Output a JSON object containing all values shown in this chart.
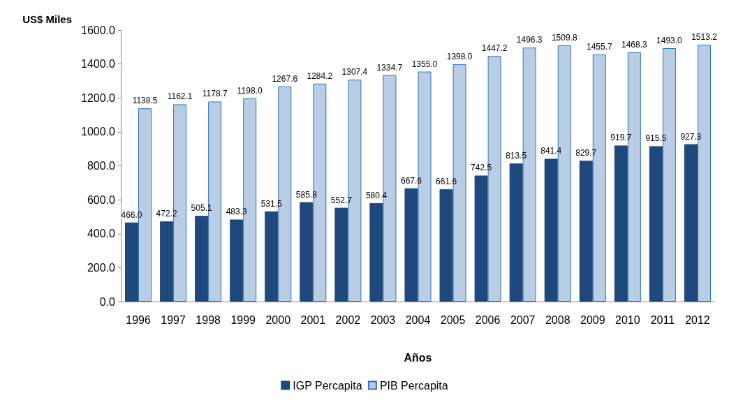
{
  "chart_data": {
    "type": "bar",
    "xlabel": "Años",
    "ylabel": "US$ Miles",
    "categories": [
      "1996",
      "1997",
      "1998",
      "1999",
      "2000",
      "2001",
      "2002",
      "2003",
      "2004",
      "2005",
      "2006",
      "2007",
      "2008",
      "2009",
      "2010",
      "2011",
      "2012"
    ],
    "series": [
      {
        "name": "IGP Percapita",
        "color": "#1f497d",
        "values": [
          466.0,
          472.2,
          505.1,
          483.3,
          531.5,
          585.8,
          552.7,
          580.4,
          667.6,
          661.6,
          742.5,
          813.5,
          841.4,
          829.7,
          919.7,
          915.5,
          927.3
        ],
        "value_labels": [
          "466.0",
          "472.2",
          "505.1",
          "483.3",
          "531.5",
          "585.8",
          "552.7",
          "580.4",
          "667.6",
          "661.6",
          "742.5",
          "813.5",
          "841.4",
          "829.7",
          "919.7",
          "915.5",
          "927.3"
        ]
      },
      {
        "name": "PIB Percapita",
        "color": "#b9cde5",
        "values": [
          1138.5,
          1162.1,
          1178.7,
          1198.0,
          1267.6,
          1284.2,
          1307.4,
          1334.7,
          1355.0,
          1398.0,
          1447.2,
          1496.3,
          1509.8,
          1455.7,
          1468.3,
          1493.0,
          1513.2
        ],
        "value_labels": [
          "1138.5",
          "1162.1",
          "1178.7",
          "1198.0",
          "1267.6",
          "1284.2",
          "1307.4",
          "1334.7",
          "1355.0",
          "1398.0",
          "1447.2",
          "1496.3",
          "1509.8",
          "1455.7",
          "1468.3",
          "1493.0",
          "1513.2"
        ]
      }
    ],
    "ylim": [
      0,
      1600
    ],
    "yticks": [
      {
        "value": 0,
        "label": "0.0"
      },
      {
        "value": 200,
        "label": "200.0"
      },
      {
        "value": 400,
        "label": "400.0"
      },
      {
        "value": 600,
        "label": "600.0"
      },
      {
        "value": 800,
        "label": "800.0"
      },
      {
        "value": 1000,
        "label": "1000.0"
      },
      {
        "value": 1200,
        "label": "1200.0"
      },
      {
        "value": 1400,
        "label": "1400.0"
      },
      {
        "value": 1600,
        "label": "1600.0"
      }
    ],
    "grid": false,
    "legend": "bottom"
  }
}
